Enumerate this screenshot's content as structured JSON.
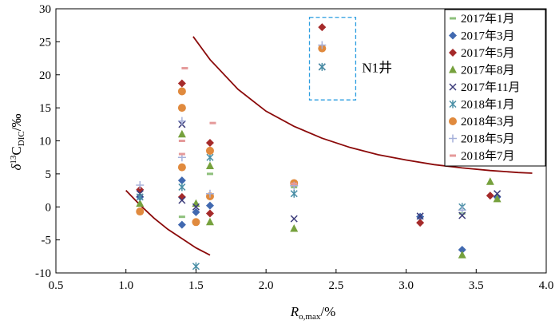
{
  "chart_data": {
    "type": "scatter",
    "xlabel": {
      "main": "R",
      "sub": "o,max",
      "unit": "/%"
    },
    "ylabel": {
      "pre": "δ",
      "sup": "13",
      "main": "C",
      "sub": "DIC",
      "unit": "/‰"
    },
    "xlim": [
      0.5,
      4.0
    ],
    "ylim": [
      -10,
      30
    ],
    "xticks": [
      "0.5",
      "1.0",
      "1.5",
      "2.0",
      "2.5",
      "3.0",
      "3.5",
      "4.0"
    ],
    "yticks": [
      "-10",
      "-5",
      "0",
      "5",
      "10",
      "15",
      "20",
      "25",
      "30"
    ],
    "grid": false,
    "legend_position": "top-right",
    "annotation": {
      "text": "N1井",
      "box_x": [
        2.31,
        2.64
      ],
      "box_y": [
        16.2,
        28.7
      ]
    },
    "series": [
      {
        "name": "2017年1月",
        "marker": "dash",
        "color": "#8ec07c",
        "x": [
          1.4,
          1.6,
          2.2,
          3.4
        ],
        "y": [
          -1.5,
          5.0,
          3.0,
          -1.0
        ]
      },
      {
        "name": "2017年3月",
        "marker": "diamond",
        "color": "#4169b0",
        "x": [
          1.1,
          1.4,
          1.4,
          1.5,
          1.6,
          3.1,
          3.4,
          3.65
        ],
        "y": [
          1.5,
          4.0,
          -2.7,
          -0.8,
          0.2,
          -1.5,
          -6.5,
          1.5
        ]
      },
      {
        "name": "2017年5月",
        "marker": "diamond",
        "color": "#a52a2a",
        "x": [
          1.1,
          1.4,
          1.4,
          1.6,
          1.6,
          2.4,
          3.1,
          3.6
        ],
        "y": [
          2.6,
          18.7,
          1.5,
          9.7,
          -1.0,
          27.2,
          -2.4,
          1.7
        ]
      },
      {
        "name": "2017年8月",
        "marker": "triangle",
        "color": "#76a13d",
        "x": [
          1.1,
          1.4,
          1.5,
          1.6,
          1.6,
          2.2,
          3.4,
          3.6,
          3.65
        ],
        "y": [
          0.5,
          11.0,
          0.5,
          6.2,
          -2.3,
          -3.3,
          -7.3,
          3.8,
          1.2
        ]
      },
      {
        "name": "2017年11月",
        "marker": "x",
        "color": "#3b3b7a",
        "x": [
          1.1,
          1.4,
          1.4,
          1.5,
          2.2,
          2.4,
          3.1,
          3.4,
          3.65
        ],
        "y": [
          2.0,
          12.5,
          1.0,
          0.0,
          -1.8,
          21.2,
          -1.4,
          -1.3,
          2.0
        ]
      },
      {
        "name": "2018年1月",
        "marker": "asterisk",
        "color": "#4a8fa6",
        "x": [
          1.1,
          1.4,
          1.5,
          1.6,
          2.2,
          2.4,
          3.4
        ],
        "y": [
          1.5,
          3.0,
          -9.0,
          7.5,
          2.0,
          21.2,
          0.0
        ]
      },
      {
        "name": "2018年3月",
        "marker": "circle",
        "color": "#e08a3e",
        "x": [
          1.1,
          1.4,
          1.4,
          1.4,
          1.5,
          1.6,
          1.6,
          2.2,
          2.4
        ],
        "y": [
          -0.7,
          15.0,
          17.5,
          6.0,
          -2.3,
          8.5,
          1.6,
          3.6,
          24.0
        ]
      },
      {
        "name": "2018年5月",
        "marker": "plus",
        "color": "#a5b0da",
        "x": [
          1.1,
          1.4,
          1.4,
          1.6,
          2.2,
          2.4,
          3.4
        ],
        "y": [
          3.3,
          13.0,
          7.5,
          2.0,
          3.2,
          24.5,
          -0.5
        ]
      },
      {
        "name": "2018年7月",
        "marker": "dash",
        "color": "#e59a9a",
        "x": [
          1.42,
          1.4,
          1.4,
          1.62,
          2.2
        ],
        "y": [
          21.0,
          10.0,
          8.0,
          12.7,
          3.5
        ]
      }
    ],
    "envelope_curves": [
      {
        "color": "#8b0a0a",
        "x": [
          1.0,
          1.1,
          1.2,
          1.3,
          1.4,
          1.5,
          1.6
        ],
        "y": [
          2.5,
          0.3,
          -1.7,
          -3.4,
          -4.8,
          -6.2,
          -7.3
        ]
      },
      {
        "color": "#8b0a0a",
        "x": [
          1.48,
          1.6,
          1.8,
          2.0,
          2.2,
          2.4,
          2.6,
          2.8,
          3.0,
          3.2,
          3.4,
          3.6,
          3.8,
          3.9
        ],
        "y": [
          25.8,
          22.3,
          17.8,
          14.5,
          12.2,
          10.4,
          9.0,
          7.9,
          7.1,
          6.4,
          5.9,
          5.5,
          5.2,
          5.1
        ]
      }
    ]
  }
}
